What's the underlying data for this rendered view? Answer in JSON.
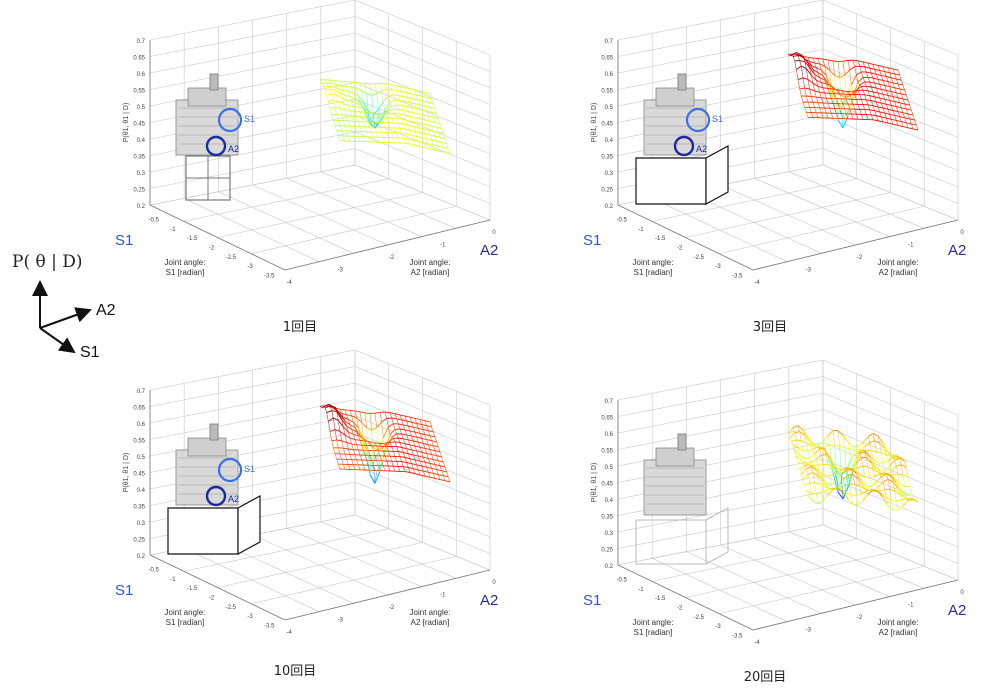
{
  "legend": {
    "p_label": "P( θ | D)",
    "a2": "A2",
    "s1": "S1"
  },
  "axis_names": {
    "s1": "S1",
    "a2": "A2"
  },
  "axis_titles": {
    "x_line1": "Joint angle:",
    "x_line2": "S1 [radian]",
    "y_line1": "Joint angle:",
    "y_line2": "A2 [radian]",
    "z": "P(θ1, θ1 | D)"
  },
  "robot_labels": {
    "s1": "S1",
    "a2": "A2"
  },
  "colors": {
    "accent_blue": "#3a6ee8",
    "dark_blue": "#1a2a9a"
  },
  "chart_data": [
    {
      "type": "surface",
      "caption": "1回目",
      "zticks": [
        "0.7",
        "0.65",
        "0.6",
        "0.55",
        "0.5",
        "0.45",
        "0.4",
        "0.35",
        "0.3",
        "0.25",
        "0.2"
      ],
      "xticks": [
        "-0.5",
        "-1",
        "-1.5",
        "-2",
        "-2.5",
        "-3",
        "-3.5"
      ],
      "yticks": [
        "0",
        "-1",
        "-2",
        "-3",
        "-4"
      ],
      "zlim": [
        0.2,
        0.7
      ],
      "grid": true,
      "peak": 0.55,
      "dip": 0.38,
      "box": "frame"
    },
    {
      "type": "surface",
      "caption": "3回目",
      "zticks": [
        "0.7",
        "0.65",
        "0.6",
        "0.55",
        "0.5",
        "0.45",
        "0.4",
        "0.35",
        "0.3",
        "0.25",
        "0.2"
      ],
      "xticks": [
        "-0.5",
        "-1",
        "-1.5",
        "-2",
        "-2.5",
        "-3",
        "-3.5"
      ],
      "yticks": [
        "0",
        "-1",
        "-2",
        "-3",
        "-4"
      ],
      "zlim": [
        0.2,
        0.7
      ],
      "grid": true,
      "peak": 0.68,
      "dip": 0.38,
      "box": "box"
    },
    {
      "type": "surface",
      "caption": "10回目",
      "zticks": [
        "0.7",
        "0.65",
        "0.6",
        "0.55",
        "0.5",
        "0.45",
        "0.4",
        "0.35",
        "0.3",
        "0.25",
        "0.2"
      ],
      "xticks": [
        "-0.5",
        "-1",
        "-1.5",
        "-2",
        "-2.5",
        "-3",
        "-3.5"
      ],
      "yticks": [
        "0",
        "-1",
        "-2",
        "-3",
        "-4"
      ],
      "zlim": [
        0.2,
        0.7
      ],
      "grid": true,
      "peak": 0.67,
      "dip": 0.35,
      "box": "box"
    },
    {
      "type": "surface",
      "caption": "20回目",
      "zticks": [
        "0.7",
        "0.65",
        "0.6",
        "0.55",
        "0.5",
        "0.45",
        "0.4",
        "0.35",
        "0.3",
        "0.25",
        "0.2"
      ],
      "xticks": [
        "-0.5",
        "-1",
        "-1.5",
        "-2",
        "-2.5",
        "-3",
        "-3.5"
      ],
      "yticks": [
        "0",
        "-1",
        "-2",
        "-3",
        "-4"
      ],
      "zlim": [
        0.2,
        0.7
      ],
      "grid": true,
      "peak": 0.58,
      "dip": 0.35,
      "box": "faint",
      "multimodal": true
    }
  ]
}
